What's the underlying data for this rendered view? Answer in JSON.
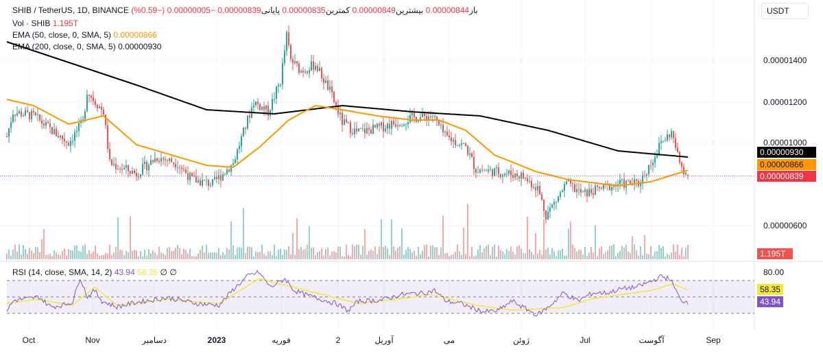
{
  "header": {
    "symbol": "SHIB / TetherUS, 1D, BINANCE",
    "open_label": "باز",
    "open": "0.00000844",
    "high_label": "بیشترین",
    "high": "0.00000849",
    "low_label": "کمترین",
    "low": "0.00000835",
    "close_label": "پایانی",
    "close": "0.00000839",
    "change": "−0.00000005 (−0.59%)"
  },
  "vol": {
    "label": "Vol · SHIB",
    "value": "1.195T"
  },
  "ema50": {
    "label": "EMA (50, close, 0, SMA, 5)",
    "value": "0.00000866"
  },
  "ema200": {
    "label": "EMA (200, close, 0, SMA, 5)",
    "value": "0.00000930"
  },
  "rsi": {
    "label": "RSI (14, close, SMA, 14, 2)",
    "value": "43.94",
    "sma": "58.35",
    "extra1": "∅",
    "extra2": "∅"
  },
  "currency": "USDT",
  "price_ticks": [
    "0.00001400",
    "0.00001200",
    "0.00001000",
    "0.00000600"
  ],
  "rsi_tick": "80.00",
  "tags": {
    "ema200": "0.00000930",
    "ema50": "0.00000866",
    "last": "0.00000839",
    "vol": "1.195T",
    "rsi_sma": "58.35",
    "rsi": "43.94"
  },
  "time_labels": [
    "Oct",
    "Nov",
    "دسامبر",
    "2023",
    "فوریه",
    "2",
    "آوریل",
    "می",
    "ژوئن",
    "Jul",
    "آگوست",
    "Sep"
  ],
  "colors": {
    "up": "#26a69a",
    "down": "#ef5350",
    "ema50": "#ff9800",
    "ema200": "#000000",
    "rsi": "#7e57c2",
    "rsi_sma": "#f5e63b"
  },
  "chart_data": {
    "type": "candlestick",
    "unit": "1e-6 USDT",
    "close_path": [
      [
        0,
        10.3
      ],
      [
        3,
        11.5
      ],
      [
        13,
        11.3
      ],
      [
        23,
        10.5
      ],
      [
        30,
        10
      ],
      [
        37,
        11
      ],
      [
        39,
        12.5
      ],
      [
        47,
        11.5
      ],
      [
        50,
        9
      ],
      [
        55,
        8.8
      ],
      [
        63,
        8.5
      ],
      [
        73,
        9.3
      ],
      [
        83,
        9
      ],
      [
        90,
        8.2
      ],
      [
        100,
        8
      ],
      [
        110,
        9
      ],
      [
        115,
        10.5
      ],
      [
        120,
        12
      ],
      [
        127,
        11.5
      ],
      [
        133,
        13
      ],
      [
        136,
        15.2
      ],
      [
        138,
        14
      ],
      [
        143,
        13.5
      ],
      [
        150,
        13.8
      ],
      [
        157,
        12.5
      ],
      [
        163,
        11
      ],
      [
        170,
        10.5
      ],
      [
        180,
        10.7
      ],
      [
        190,
        11
      ],
      [
        197,
        11.2
      ],
      [
        207,
        11.3
      ],
      [
        213,
        10.3
      ],
      [
        223,
        9.8
      ],
      [
        228,
        8.7
      ],
      [
        237,
        8.6
      ],
      [
        250,
        8.4
      ],
      [
        258,
        7.8
      ],
      [
        262,
        6.5
      ],
      [
        267,
        7.2
      ],
      [
        272,
        8
      ],
      [
        280,
        7.5
      ],
      [
        290,
        7.8
      ],
      [
        297,
        8
      ],
      [
        307,
        8
      ],
      [
        313,
        9
      ],
      [
        318,
        10
      ],
      [
        323,
        10.5
      ],
      [
        327,
        9
      ],
      [
        331,
        8.39
      ]
    ],
    "ema50": [
      [
        0,
        12.1
      ],
      [
        13,
        11.8
      ],
      [
        30,
        10.9
      ],
      [
        47,
        11.3
      ],
      [
        63,
        9.9
      ],
      [
        80,
        9.4
      ],
      [
        97,
        8.9
      ],
      [
        110,
        8.8
      ],
      [
        123,
        9.8
      ],
      [
        137,
        11.1
      ],
      [
        150,
        11.8
      ],
      [
        163,
        11.6
      ],
      [
        180,
        11.3
      ],
      [
        197,
        11.1
      ],
      [
        210,
        11.1
      ],
      [
        223,
        10.6
      ],
      [
        237,
        9.4
      ],
      [
        257,
        8.6
      ],
      [
        273,
        8.2
      ],
      [
        297,
        7.9
      ],
      [
        313,
        8.1
      ],
      [
        331,
        8.66
      ]
    ],
    "ema200": [
      [
        0,
        14.9
      ],
      [
        30,
        13.9
      ],
      [
        63,
        12.8
      ],
      [
        97,
        11.6
      ],
      [
        130,
        11.4
      ],
      [
        163,
        11.8
      ],
      [
        197,
        11.5
      ],
      [
        230,
        11.3
      ],
      [
        263,
        10.6
      ],
      [
        297,
        9.6
      ],
      [
        331,
        9.3
      ]
    ],
    "rsi": [
      [
        0,
        34
      ],
      [
        5,
        46
      ],
      [
        15,
        48
      ],
      [
        22,
        50
      ],
      [
        30,
        38
      ],
      [
        38,
        40
      ],
      [
        45,
        44
      ],
      [
        50,
        74
      ],
      [
        55,
        50
      ],
      [
        60,
        58
      ],
      [
        65,
        45
      ],
      [
        75,
        38
      ],
      [
        90,
        44
      ],
      [
        110,
        49
      ],
      [
        130,
        42
      ],
      [
        145,
        40
      ],
      [
        155,
        60
      ],
      [
        165,
        76
      ],
      [
        172,
        80
      ],
      [
        180,
        62
      ],
      [
        190,
        72
      ],
      [
        196,
        58
      ],
      [
        205,
        52
      ],
      [
        225,
        42
      ],
      [
        233,
        33
      ],
      [
        240,
        45
      ],
      [
        255,
        46
      ],
      [
        270,
        53
      ],
      [
        285,
        55
      ],
      [
        292,
        58
      ],
      [
        300,
        45
      ],
      [
        310,
        42
      ],
      [
        325,
        32
      ],
      [
        335,
        33
      ],
      [
        345,
        45
      ],
      [
        355,
        35
      ],
      [
        362,
        28
      ],
      [
        370,
        38
      ],
      [
        380,
        55
      ],
      [
        390,
        45
      ],
      [
        400,
        55
      ],
      [
        410,
        55
      ],
      [
        420,
        60
      ],
      [
        430,
        62
      ],
      [
        440,
        69
      ],
      [
        447,
        75
      ],
      [
        453,
        72
      ],
      [
        460,
        46
      ],
      [
        465,
        43.94
      ]
    ],
    "rsi_sma": [
      [
        0,
        42
      ],
      [
        20,
        47
      ],
      [
        45,
        40
      ],
      [
        60,
        62
      ],
      [
        75,
        40
      ],
      [
        110,
        47
      ],
      [
        145,
        42
      ],
      [
        172,
        72
      ],
      [
        200,
        60
      ],
      [
        240,
        42
      ],
      [
        270,
        48
      ],
      [
        290,
        53
      ],
      [
        320,
        40
      ],
      [
        345,
        34
      ],
      [
        380,
        37
      ],
      [
        400,
        48
      ],
      [
        440,
        58
      ],
      [
        455,
        66
      ],
      [
        465,
        58.35
      ]
    ],
    "xticks": [
      "Oct",
      "Nov",
      "دسامبر",
      "2023",
      "فوریه",
      "2",
      "آوریل",
      "می",
      "ژوئن",
      "Jul",
      "آگوست",
      "Sep"
    ],
    "ylim": [
      5.8,
      16.8
    ],
    "rsi_levels": [
      70,
      50,
      30
    ]
  }
}
